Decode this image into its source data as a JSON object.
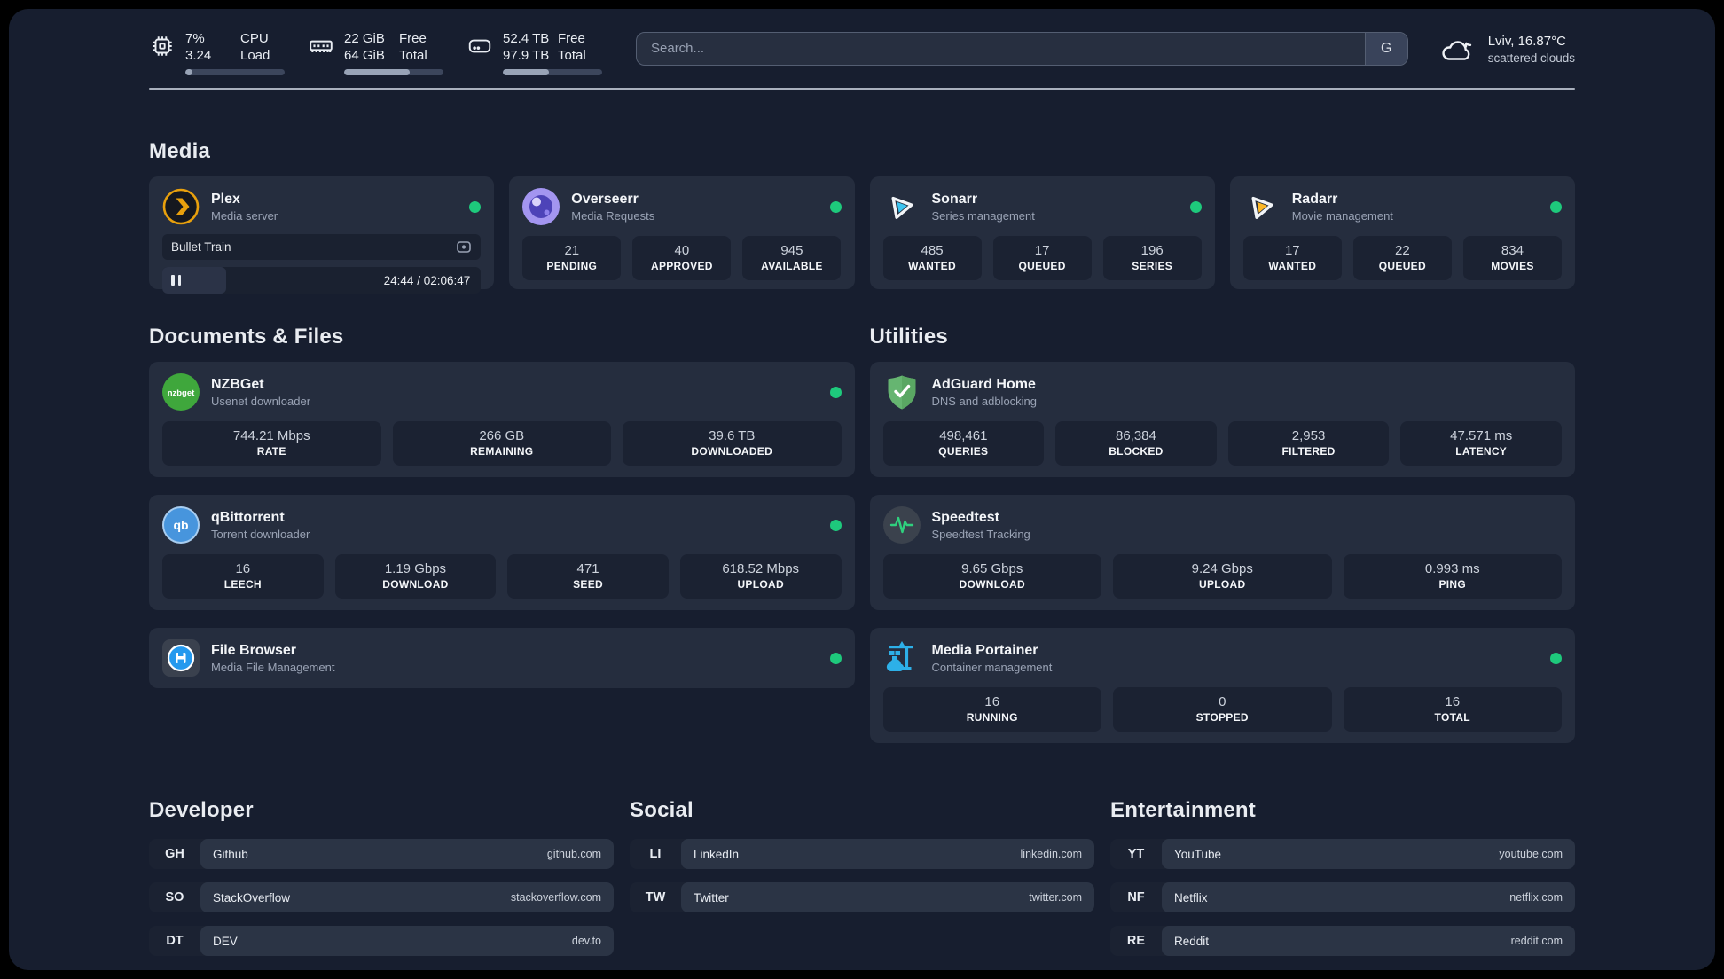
{
  "topbar": {
    "cpu": {
      "value_top": "7%",
      "value_bottom": "3.24",
      "label_top": "CPU",
      "label_bottom": "Load",
      "progress_pct": 7
    },
    "memory": {
      "value_top": "22 GiB",
      "value_bottom": "64 GiB",
      "label_top": "Free",
      "label_bottom": "Total",
      "progress_pct": 66
    },
    "disk": {
      "value_top": "52.4 TB",
      "value_bottom": "97.9 TB",
      "label_top": "Free",
      "label_bottom": "Total",
      "progress_pct": 46
    },
    "search": {
      "placeholder": "Search...",
      "engine_button": "G"
    },
    "weather": {
      "location_temp": "Lviv, 16.87°C",
      "condition": "scattered clouds"
    }
  },
  "media": {
    "heading": "Media",
    "plex": {
      "name": "Plex",
      "description": "Media server",
      "player": {
        "title": "Bullet Train",
        "time": "24:44 / 02:06:47",
        "progress_pct": 20
      }
    },
    "overseerr": {
      "name": "Overseerr",
      "description": "Media Requests",
      "stats": [
        {
          "value": "21",
          "label": "PENDING"
        },
        {
          "value": "40",
          "label": "APPROVED"
        },
        {
          "value": "945",
          "label": "AVAILABLE"
        }
      ]
    },
    "sonarr": {
      "name": "Sonarr",
      "description": "Series management",
      "stats": [
        {
          "value": "485",
          "label": "WANTED"
        },
        {
          "value": "17",
          "label": "QUEUED"
        },
        {
          "value": "196",
          "label": "SERIES"
        }
      ]
    },
    "radarr": {
      "name": "Radarr",
      "description": "Movie management",
      "stats": [
        {
          "value": "17",
          "label": "WANTED"
        },
        {
          "value": "22",
          "label": "QUEUED"
        },
        {
          "value": "834",
          "label": "MOVIES"
        }
      ]
    }
  },
  "documents": {
    "heading": "Documents & Files",
    "nzbget": {
      "name": "NZBGet",
      "description": "Usenet downloader",
      "stats": [
        {
          "value": "744.21 Mbps",
          "label": "RATE"
        },
        {
          "value": "266 GB",
          "label": "REMAINING"
        },
        {
          "value": "39.6 TB",
          "label": "DOWNLOADED"
        }
      ]
    },
    "qbittorrent": {
      "name": "qBittorrent",
      "description": "Torrent downloader",
      "stats": [
        {
          "value": "16",
          "label": "LEECH"
        },
        {
          "value": "1.19 Gbps",
          "label": "DOWNLOAD"
        },
        {
          "value": "471",
          "label": "SEED"
        },
        {
          "value": "618.52 Mbps",
          "label": "UPLOAD"
        }
      ]
    },
    "filebrowser": {
      "name": "File Browser",
      "description": "Media File Management"
    }
  },
  "utilities": {
    "heading": "Utilities",
    "adguard": {
      "name": "AdGuard Home",
      "description": "DNS and adblocking",
      "stats": [
        {
          "value": "498,461",
          "label": "QUERIES"
        },
        {
          "value": "86,384",
          "label": "BLOCKED"
        },
        {
          "value": "2,953",
          "label": "FILTERED"
        },
        {
          "value": "47.571 ms",
          "label": "LATENCY"
        }
      ]
    },
    "speedtest": {
      "name": "Speedtest",
      "description": "Speedtest Tracking",
      "stats": [
        {
          "value": "9.65 Gbps",
          "label": "DOWNLOAD"
        },
        {
          "value": "9.24 Gbps",
          "label": "UPLOAD"
        },
        {
          "value": "0.993 ms",
          "label": "PING"
        }
      ]
    },
    "portainer": {
      "name": "Media Portainer",
      "description": "Container management",
      "stats": [
        {
          "value": "16",
          "label": "RUNNING"
        },
        {
          "value": "0",
          "label": "STOPPED"
        },
        {
          "value": "16",
          "label": "TOTAL"
        }
      ]
    }
  },
  "bookmarks": {
    "developer": {
      "heading": "Developer",
      "items": [
        {
          "abbr": "GH",
          "name": "Github",
          "url": "github.com"
        },
        {
          "abbr": "SO",
          "name": "StackOverflow",
          "url": "stackoverflow.com"
        },
        {
          "abbr": "DT",
          "name": "DEV",
          "url": "dev.to"
        }
      ]
    },
    "social": {
      "heading": "Social",
      "items": [
        {
          "abbr": "LI",
          "name": "LinkedIn",
          "url": "linkedin.com"
        },
        {
          "abbr": "TW",
          "name": "Twitter",
          "url": "twitter.com"
        }
      ]
    },
    "entertainment": {
      "heading": "Entertainment",
      "items": [
        {
          "abbr": "YT",
          "name": "YouTube",
          "url": "youtube.com"
        },
        {
          "abbr": "NF",
          "name": "Netflix",
          "url": "netflix.com"
        },
        {
          "abbr": "RE",
          "name": "Reddit",
          "url": "reddit.com"
        }
      ]
    }
  },
  "colors": {
    "status_online": "#1ec97c",
    "accent_green": "#2fd07e"
  }
}
